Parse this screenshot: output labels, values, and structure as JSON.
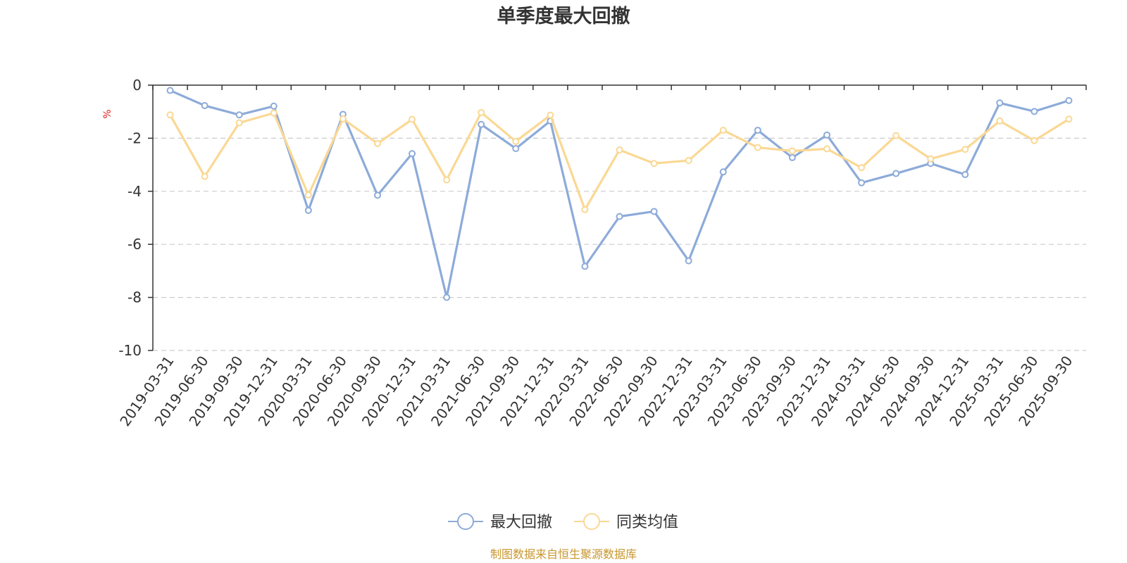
{
  "chart_data": {
    "type": "line",
    "title": "单季度最大回撤",
    "ylabel": "%",
    "xlabel": "",
    "ylim": [
      -10,
      0
    ],
    "yticks": [
      0,
      -2,
      -4,
      -6,
      -8,
      -10
    ],
    "grid": true,
    "categories": [
      "2019-03-31",
      "2019-06-30",
      "2019-09-30",
      "2019-12-31",
      "2020-03-31",
      "2020-06-30",
      "2020-09-30",
      "2020-12-31",
      "2021-03-31",
      "2021-06-30",
      "2021-09-30",
      "2021-12-31",
      "2022-03-31",
      "2022-06-30",
      "2022-09-30",
      "2022-12-31",
      "2023-03-31",
      "2023-06-30",
      "2023-09-30",
      "2023-12-31",
      "2024-03-31",
      "2024-06-30",
      "2024-09-30",
      "2024-12-31",
      "2025-03-31",
      "2025-06-30",
      "2025-09-30"
    ],
    "series": [
      {
        "name": "最大回撤",
        "color": "#8dabd9",
        "values": [
          -0.2,
          -0.77,
          -1.12,
          -0.79,
          -4.72,
          -1.1,
          -4.15,
          -2.58,
          -8.0,
          -1.48,
          -2.39,
          -1.35,
          -6.83,
          -4.95,
          -4.76,
          -6.62,
          -3.27,
          -1.7,
          -2.73,
          -1.88,
          -3.68,
          -3.33,
          -2.95,
          -3.37,
          -0.67,
          -0.99,
          -0.58
        ]
      },
      {
        "name": "同类均值",
        "color": "#fad894",
        "values": [
          -1.12,
          -3.44,
          -1.42,
          -1.05,
          -4.14,
          -1.27,
          -2.2,
          -1.29,
          -3.57,
          -1.03,
          -2.12,
          -1.13,
          -4.69,
          -2.44,
          -2.95,
          -2.84,
          -1.7,
          -2.35,
          -2.48,
          -2.4,
          -3.11,
          -1.9,
          -2.78,
          -2.42,
          -1.35,
          -2.09,
          -1.28
        ]
      }
    ],
    "legend_position": "bottom-center",
    "source": "制图数据来自恒生聚源数据库",
    "source_color": "#c8962e",
    "unit_color": "#e02020",
    "axis_color": "#333333",
    "grid_color": "#cccccc"
  }
}
